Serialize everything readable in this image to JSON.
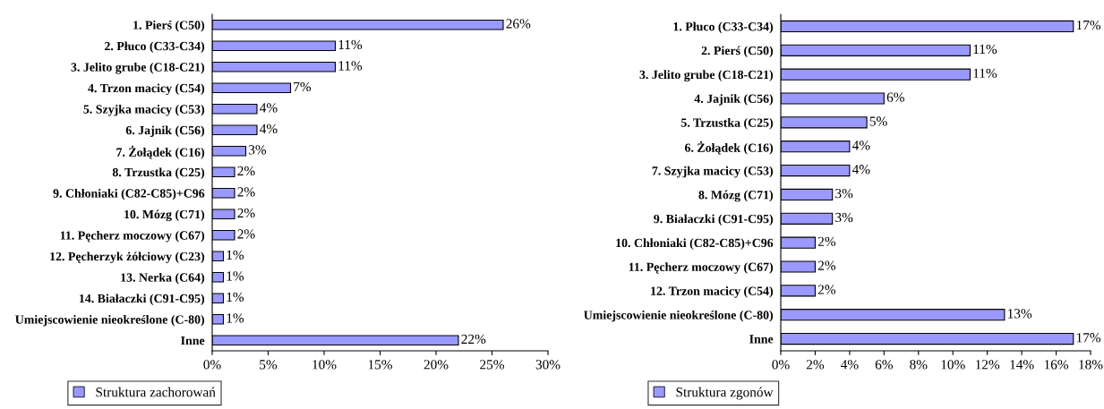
{
  "chart_data": [
    {
      "type": "bar",
      "orientation": "horizontal",
      "categories": [
        "1. Pierś (C50)",
        "2. Płuco (C33-C34)",
        "3. Jelito grube (C18-C21)",
        "4. Trzon macicy (C54)",
        "5. Szyjka macicy (C53)",
        "6. Jajnik (C56)",
        "7. Żołądek (C16)",
        "8. Trzustka (C25)",
        "9. Chłoniaki (C82-C85)+C96",
        "10. Mózg (C71)",
        "11. Pęcherz moczowy (C67)",
        "12. Pęcherzyk żółciowy (C23)",
        "13. Nerka (C64)",
        "14. Białaczki (C91-C95)",
        "Umiejscowienie nieokreślone (C-80)",
        "Inne"
      ],
      "series": [
        {
          "name": "Struktura zachorowań",
          "color": "#9999ff",
          "values": [
            26,
            11,
            11,
            7,
            4,
            4,
            3,
            2,
            2,
            2,
            2,
            1,
            1,
            1,
            1,
            22
          ],
          "value_labels": [
            "26%",
            "11%",
            "11%",
            "7%",
            "4%",
            "4%",
            "3%",
            "2%",
            "2%",
            "2%",
            "2%",
            "1%",
            "1%",
            "1%",
            "1%",
            "22%"
          ]
        }
      ],
      "xlim": [
        0,
        30
      ],
      "xticks": [
        {
          "value": 0,
          "label": "0%"
        },
        {
          "value": 5,
          "label": "5%"
        },
        {
          "value": 10,
          "label": "10%"
        },
        {
          "value": 15,
          "label": "15%"
        },
        {
          "value": 20,
          "label": "20%"
        },
        {
          "value": 25,
          "label": "25%"
        },
        {
          "value": 30,
          "label": "30%"
        }
      ],
      "grid": false,
      "legend": "bottom"
    },
    {
      "type": "bar",
      "orientation": "horizontal",
      "categories": [
        "1. Płuco (C33-C34)",
        "2. Pierś (C50)",
        "3. Jelito grube (C18-C21)",
        "4. Jajnik (C56)",
        "5. Trzustka (C25)",
        "6. Żołądek (C16)",
        "7. Szyjka macicy (C53)",
        "8. Mózg (C71)",
        "9. Białaczki (C91-C95)",
        "10. Chłoniaki (C82-C85)+C96",
        "11. Pęcherz moczowy (C67)",
        "12. Trzon macicy (C54)",
        "Umiejscowienie nieokreślone (C-80)",
        "Inne"
      ],
      "series": [
        {
          "name": "Struktura zgonów",
          "color": "#9999ff",
          "values": [
            17,
            11,
            11,
            6,
            5,
            4,
            4,
            3,
            3,
            2,
            2,
            2,
            13,
            17
          ],
          "value_labels": [
            "17%",
            "11%",
            "11%",
            "6%",
            "5%",
            "4%",
            "4%",
            "3%",
            "3%",
            "2%",
            "2%",
            "2%",
            "13%",
            "17%"
          ]
        }
      ],
      "xlim": [
        0,
        18
      ],
      "xticks": [
        {
          "value": 0,
          "label": "0%"
        },
        {
          "value": 2,
          "label": "2%"
        },
        {
          "value": 4,
          "label": "4%"
        },
        {
          "value": 6,
          "label": "6%"
        },
        {
          "value": 8,
          "label": "8%"
        },
        {
          "value": 10,
          "label": "10%"
        },
        {
          "value": 12,
          "label": "12%"
        },
        {
          "value": 14,
          "label": "14%"
        },
        {
          "value": 16,
          "label": "16%"
        },
        {
          "value": 18,
          "label": "18%"
        }
      ],
      "grid": false,
      "legend": "bottom"
    }
  ]
}
